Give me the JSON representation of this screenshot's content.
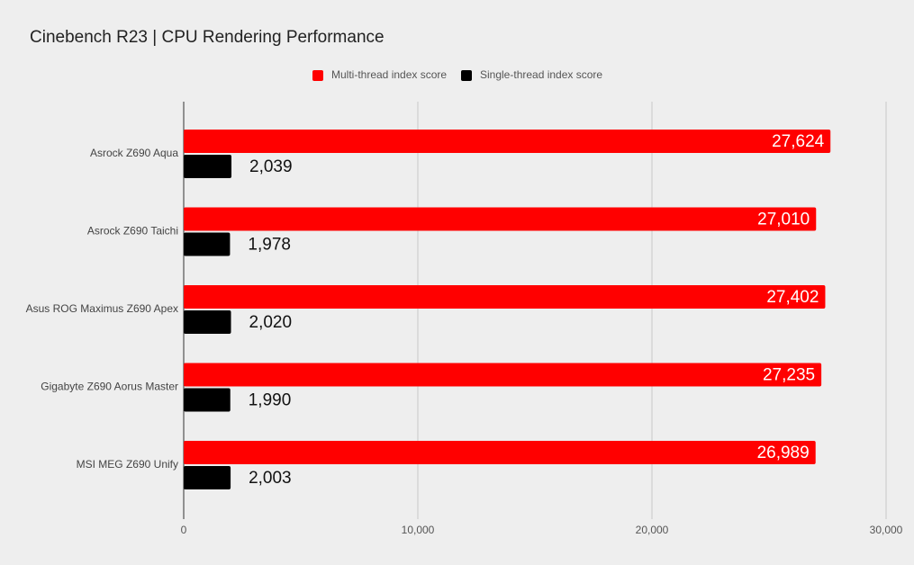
{
  "chart_data": {
    "type": "bar",
    "orientation": "horizontal",
    "title": "Cinebench R23 | CPU Rendering Performance",
    "categories": [
      "Asrock Z690 Aqua",
      "Asrock Z690 Taichi",
      "Asus ROG Maximus Z690 Apex",
      "Gigabyte Z690 Aorus Master",
      "MSI MEG Z690 Unify"
    ],
    "series": [
      {
        "name": "Multi-thread index score",
        "color": "#ff0000",
        "values": [
          27624,
          27010,
          27402,
          27235,
          26989
        ],
        "value_labels": [
          "27,624",
          "27,010",
          "27,402",
          "27,235",
          "26,989"
        ]
      },
      {
        "name": "Single-thread index score",
        "color": "#000000",
        "values": [
          2039,
          1978,
          2020,
          1990,
          2003
        ],
        "value_labels": [
          "2,039",
          "1,978",
          "2,020",
          "1,990",
          "2,003"
        ]
      }
    ],
    "xlim": [
      0,
      30000
    ],
    "xticks": [
      0,
      {
        "value": 10000,
        "label": "10,000"
      },
      {
        "value": 20000,
        "label": "20,000"
      },
      {
        "value": 30000,
        "label": "30,000"
      }
    ],
    "grid": true,
    "legend": "top"
  }
}
